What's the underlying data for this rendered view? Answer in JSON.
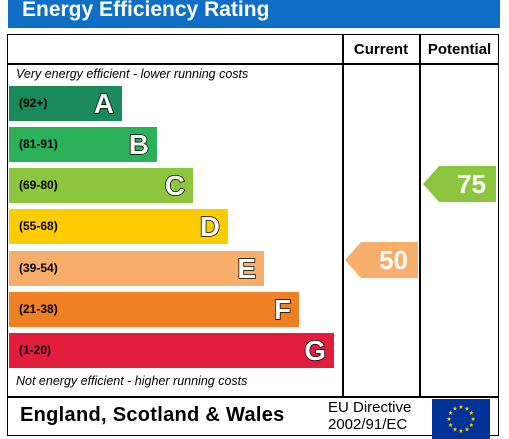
{
  "header": {
    "title": "Energy Efficiency Rating"
  },
  "columns": {
    "current": "Current",
    "potential": "Potential"
  },
  "notes": {
    "top": "Very energy efficient - lower running costs",
    "bottom": "Not energy efficient - higher running costs"
  },
  "bands": [
    {
      "range": "(92+)",
      "letter": "A",
      "color": "#1a8a5a"
    },
    {
      "range": "(81-91)",
      "letter": "B",
      "color": "#2bb15a"
    },
    {
      "range": "(69-80)",
      "letter": "C",
      "color": "#8cc63f"
    },
    {
      "range": "(55-68)",
      "letter": "D",
      "color": "#ffcc00"
    },
    {
      "range": "(39-54)",
      "letter": "E",
      "color": "#f7ae6b"
    },
    {
      "range": "(21-38)",
      "letter": "F",
      "color": "#f08024"
    },
    {
      "range": "(1-20)",
      "letter": "G",
      "color": "#e31d3c"
    }
  ],
  "ratings": {
    "current": {
      "value": "50",
      "band": "E",
      "color": "#f7ae6b"
    },
    "potential": {
      "value": "75",
      "band": "C",
      "color": "#8cc63f"
    }
  },
  "footer": {
    "region": "England, Scotland & Wales",
    "directive_line1": "EU Directive",
    "directive_line2": "2002/91/EC",
    "flag_icon": "eu-flag-icon",
    "flag_color": "#003399",
    "star_color": "#ffcc00"
  }
}
